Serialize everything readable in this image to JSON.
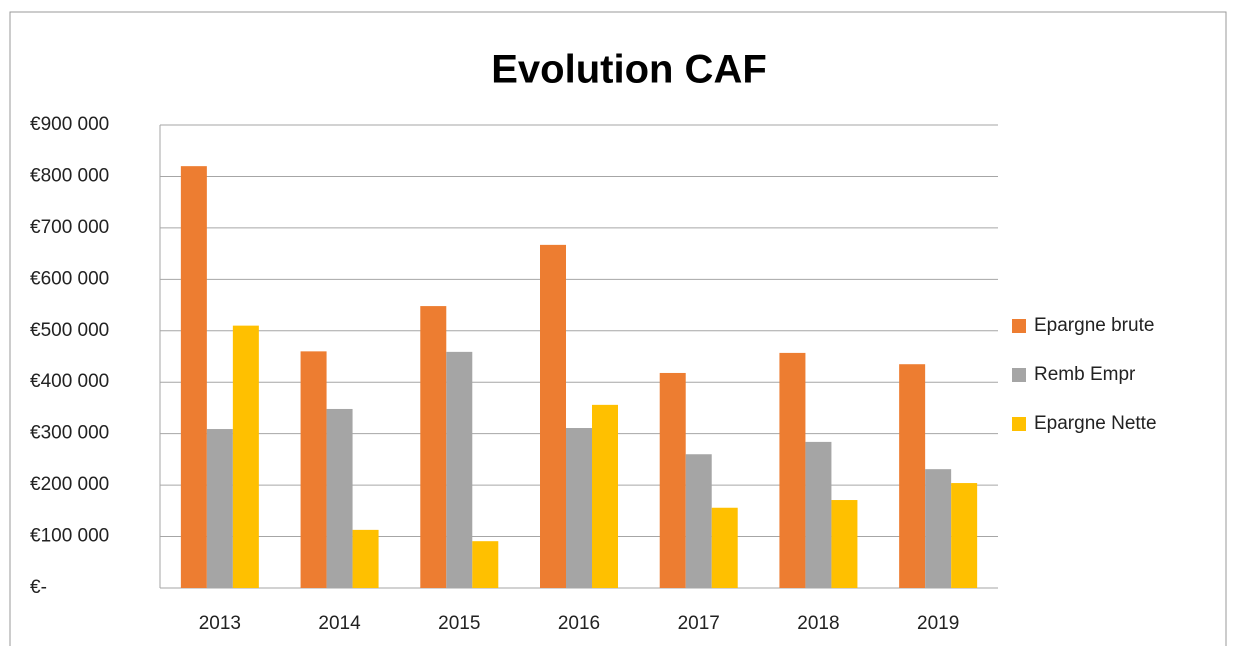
{
  "chart_data": {
    "type": "bar",
    "title": "Evolution CAF",
    "categories": [
      "2013",
      "2014",
      "2015",
      "2016",
      "2017",
      "2018",
      "2019"
    ],
    "series": [
      {
        "name": "Epargne brute",
        "color": "#ed7d31",
        "values": [
          820000,
          460000,
          548000,
          667000,
          418000,
          457000,
          435000
        ]
      },
      {
        "name": "Remb Empr",
        "color": "#a5a5a5",
        "values": [
          309000,
          348000,
          459000,
          311000,
          260000,
          284000,
          231000
        ]
      },
      {
        "name": "Epargne Nette",
        "color": "#ffc000",
        "values": [
          510000,
          113000,
          91000,
          356000,
          156000,
          171000,
          204000
        ]
      }
    ],
    "ylim": [
      0,
      900000
    ],
    "yticks": [
      {
        "value": 0,
        "label": "€-"
      },
      {
        "value": 100000,
        "label": "€100 000"
      },
      {
        "value": 200000,
        "label": "€200 000"
      },
      {
        "value": 300000,
        "label": "€300 000"
      },
      {
        "value": 400000,
        "label": "€400 000"
      },
      {
        "value": 500000,
        "label": "€500 000"
      },
      {
        "value": 600000,
        "label": "€600 000"
      },
      {
        "value": 700000,
        "label": "€700 000"
      },
      {
        "value": 800000,
        "label": "€800 000"
      },
      {
        "value": 900000,
        "label": "€900 000"
      }
    ],
    "grid": true,
    "legend": "right"
  }
}
